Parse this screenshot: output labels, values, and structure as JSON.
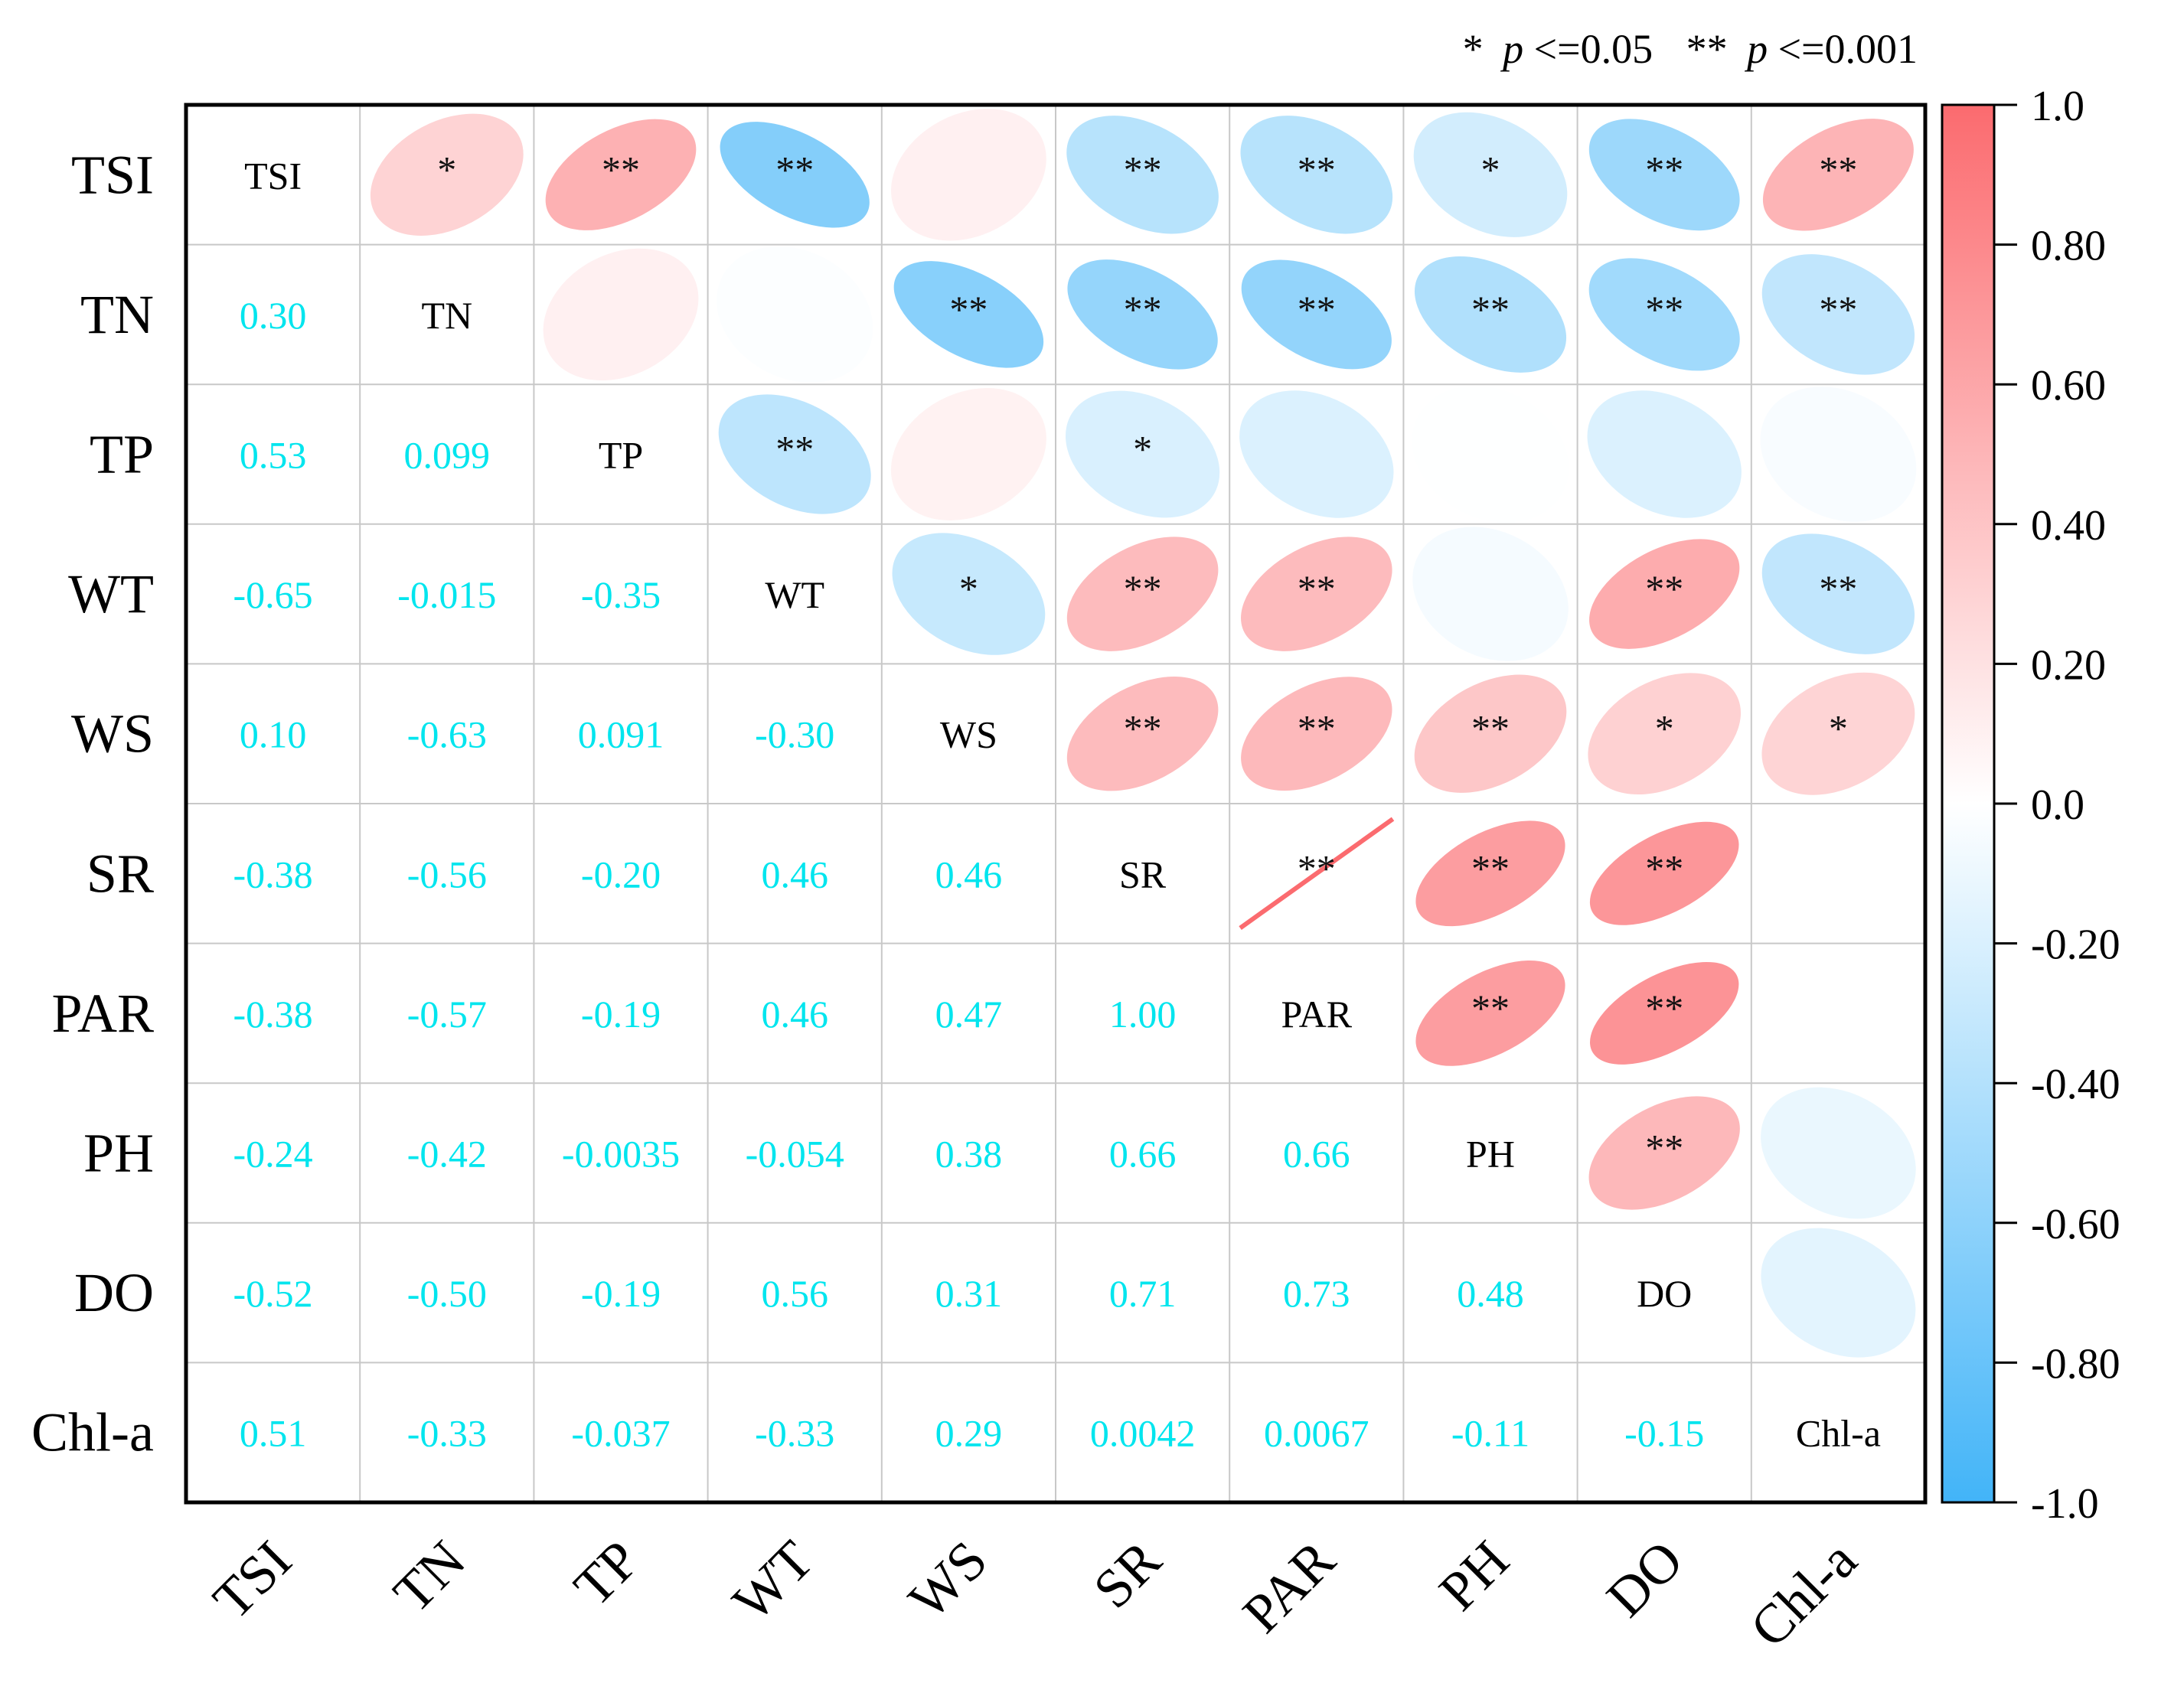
{
  "chart_data": {
    "type": "heatmap",
    "subtype": "correlation-matrix",
    "variables": [
      "TSI",
      "TN",
      "TP",
      "WT",
      "WS",
      "SR",
      "PAR",
      "PH",
      "DO",
      "Chl-a"
    ],
    "matrix": [
      [
        1.0,
        0.3,
        0.53,
        -0.65,
        0.1,
        -0.38,
        -0.38,
        -0.24,
        -0.52,
        0.51
      ],
      [
        0.3,
        1.0,
        0.099,
        -0.015,
        -0.63,
        -0.56,
        -0.57,
        -0.42,
        -0.5,
        -0.33
      ],
      [
        0.53,
        0.099,
        1.0,
        -0.35,
        0.091,
        -0.2,
        -0.19,
        -0.0035,
        -0.19,
        -0.037
      ],
      [
        -0.65,
        -0.015,
        -0.35,
        1.0,
        -0.3,
        0.46,
        0.46,
        -0.054,
        0.56,
        -0.33
      ],
      [
        0.1,
        -0.63,
        0.091,
        -0.3,
        1.0,
        0.46,
        0.47,
        0.38,
        0.31,
        0.29
      ],
      [
        -0.38,
        -0.56,
        -0.2,
        0.46,
        0.46,
        1.0,
        1.0,
        0.66,
        0.71,
        0.0042
      ],
      [
        -0.38,
        -0.57,
        -0.19,
        0.46,
        0.47,
        1.0,
        1.0,
        0.66,
        0.73,
        0.0067
      ],
      [
        -0.24,
        -0.42,
        -0.0035,
        -0.054,
        0.38,
        0.66,
        0.66,
        1.0,
        0.48,
        -0.11
      ],
      [
        -0.52,
        -0.5,
        -0.19,
        0.56,
        0.31,
        0.71,
        0.73,
        0.48,
        1.0,
        -0.15
      ],
      [
        0.51,
        -0.33,
        -0.037,
        -0.33,
        0.29,
        0.0042,
        0.0067,
        -0.11,
        -0.15,
        1.0
      ]
    ],
    "lower_labels": [
      [
        null,
        null,
        null,
        null,
        null,
        null,
        null,
        null,
        null,
        null
      ],
      [
        "0.30",
        null,
        null,
        null,
        null,
        null,
        null,
        null,
        null,
        null
      ],
      [
        "0.53",
        "0.099",
        null,
        null,
        null,
        null,
        null,
        null,
        null,
        null
      ],
      [
        "-0.65",
        "-0.015",
        "-0.35",
        null,
        null,
        null,
        null,
        null,
        null,
        null
      ],
      [
        "0.10",
        "-0.63",
        "0.091",
        "-0.30",
        null,
        null,
        null,
        null,
        null,
        null
      ],
      [
        "-0.38",
        "-0.56",
        "-0.20",
        "0.46",
        "0.46",
        null,
        null,
        null,
        null,
        null
      ],
      [
        "-0.38",
        "-0.57",
        "-0.19",
        "0.46",
        "0.47",
        "1.00",
        null,
        null,
        null,
        null
      ],
      [
        "-0.24",
        "-0.42",
        "-0.0035",
        "-0.054",
        "0.38",
        "0.66",
        "0.66",
        null,
        null,
        null
      ],
      [
        "-0.52",
        "-0.50",
        "-0.19",
        "0.56",
        "0.31",
        "0.71",
        "0.73",
        "0.48",
        null,
        null
      ],
      [
        "0.51",
        "-0.33",
        "-0.037",
        "-0.33",
        "0.29",
        "0.0042",
        "0.0067",
        "-0.11",
        "-0.15",
        null
      ]
    ],
    "significance": [
      [
        "",
        "*",
        "**",
        "**",
        "",
        "**",
        "**",
        "*",
        "**",
        "**"
      ],
      [
        "",
        "",
        "",
        "",
        "**",
        "**",
        "**",
        "**",
        "**",
        "**"
      ],
      [
        "",
        "",
        "",
        "**",
        "",
        "*",
        "",
        "",
        "",
        ""
      ],
      [
        "",
        "",
        "",
        "",
        "*",
        "**",
        "**",
        "",
        "**",
        "**"
      ],
      [
        "",
        "",
        "",
        "",
        "",
        "**",
        "**",
        "**",
        "*",
        "*"
      ],
      [
        "",
        "",
        "",
        "",
        "",
        "",
        "**",
        "**",
        "**",
        ""
      ],
      [
        "",
        "",
        "",
        "",
        "",
        "",
        "",
        "**",
        "**",
        ""
      ],
      [
        "",
        "",
        "",
        "",
        "",
        "",
        "",
        "",
        "**",
        ""
      ],
      [
        "",
        "",
        "",
        "",
        "",
        "",
        "",
        "",
        "",
        ""
      ],
      [
        "",
        "",
        "",
        "",
        "",
        "",
        "",
        "",
        "",
        ""
      ]
    ],
    "upper_display_overrides": [
      {
        "row": 5,
        "col": 9,
        "value": 0
      },
      {
        "row": 6,
        "col": 9,
        "value": 0
      }
    ],
    "significance_legend": {
      "single": "*",
      "single_p": "p",
      "single_threshold": "<=0.05",
      "double": "**",
      "double_p": "p",
      "double_threshold": "<=0.001"
    },
    "colorbar": {
      "min": -1.0,
      "max": 1.0,
      "ticks": [
        "1.0",
        "0.80",
        "0.60",
        "0.40",
        "0.20",
        "0.0",
        "-0.20",
        "-0.40",
        "-0.60",
        "-0.80",
        "-1.0"
      ],
      "colors": {
        "negative": "#42b4f8",
        "zero": "#ffffff",
        "positive": "#fb6b6f"
      }
    },
    "label_color": "#00e5ee",
    "grid_color": "#c8c8c8"
  }
}
